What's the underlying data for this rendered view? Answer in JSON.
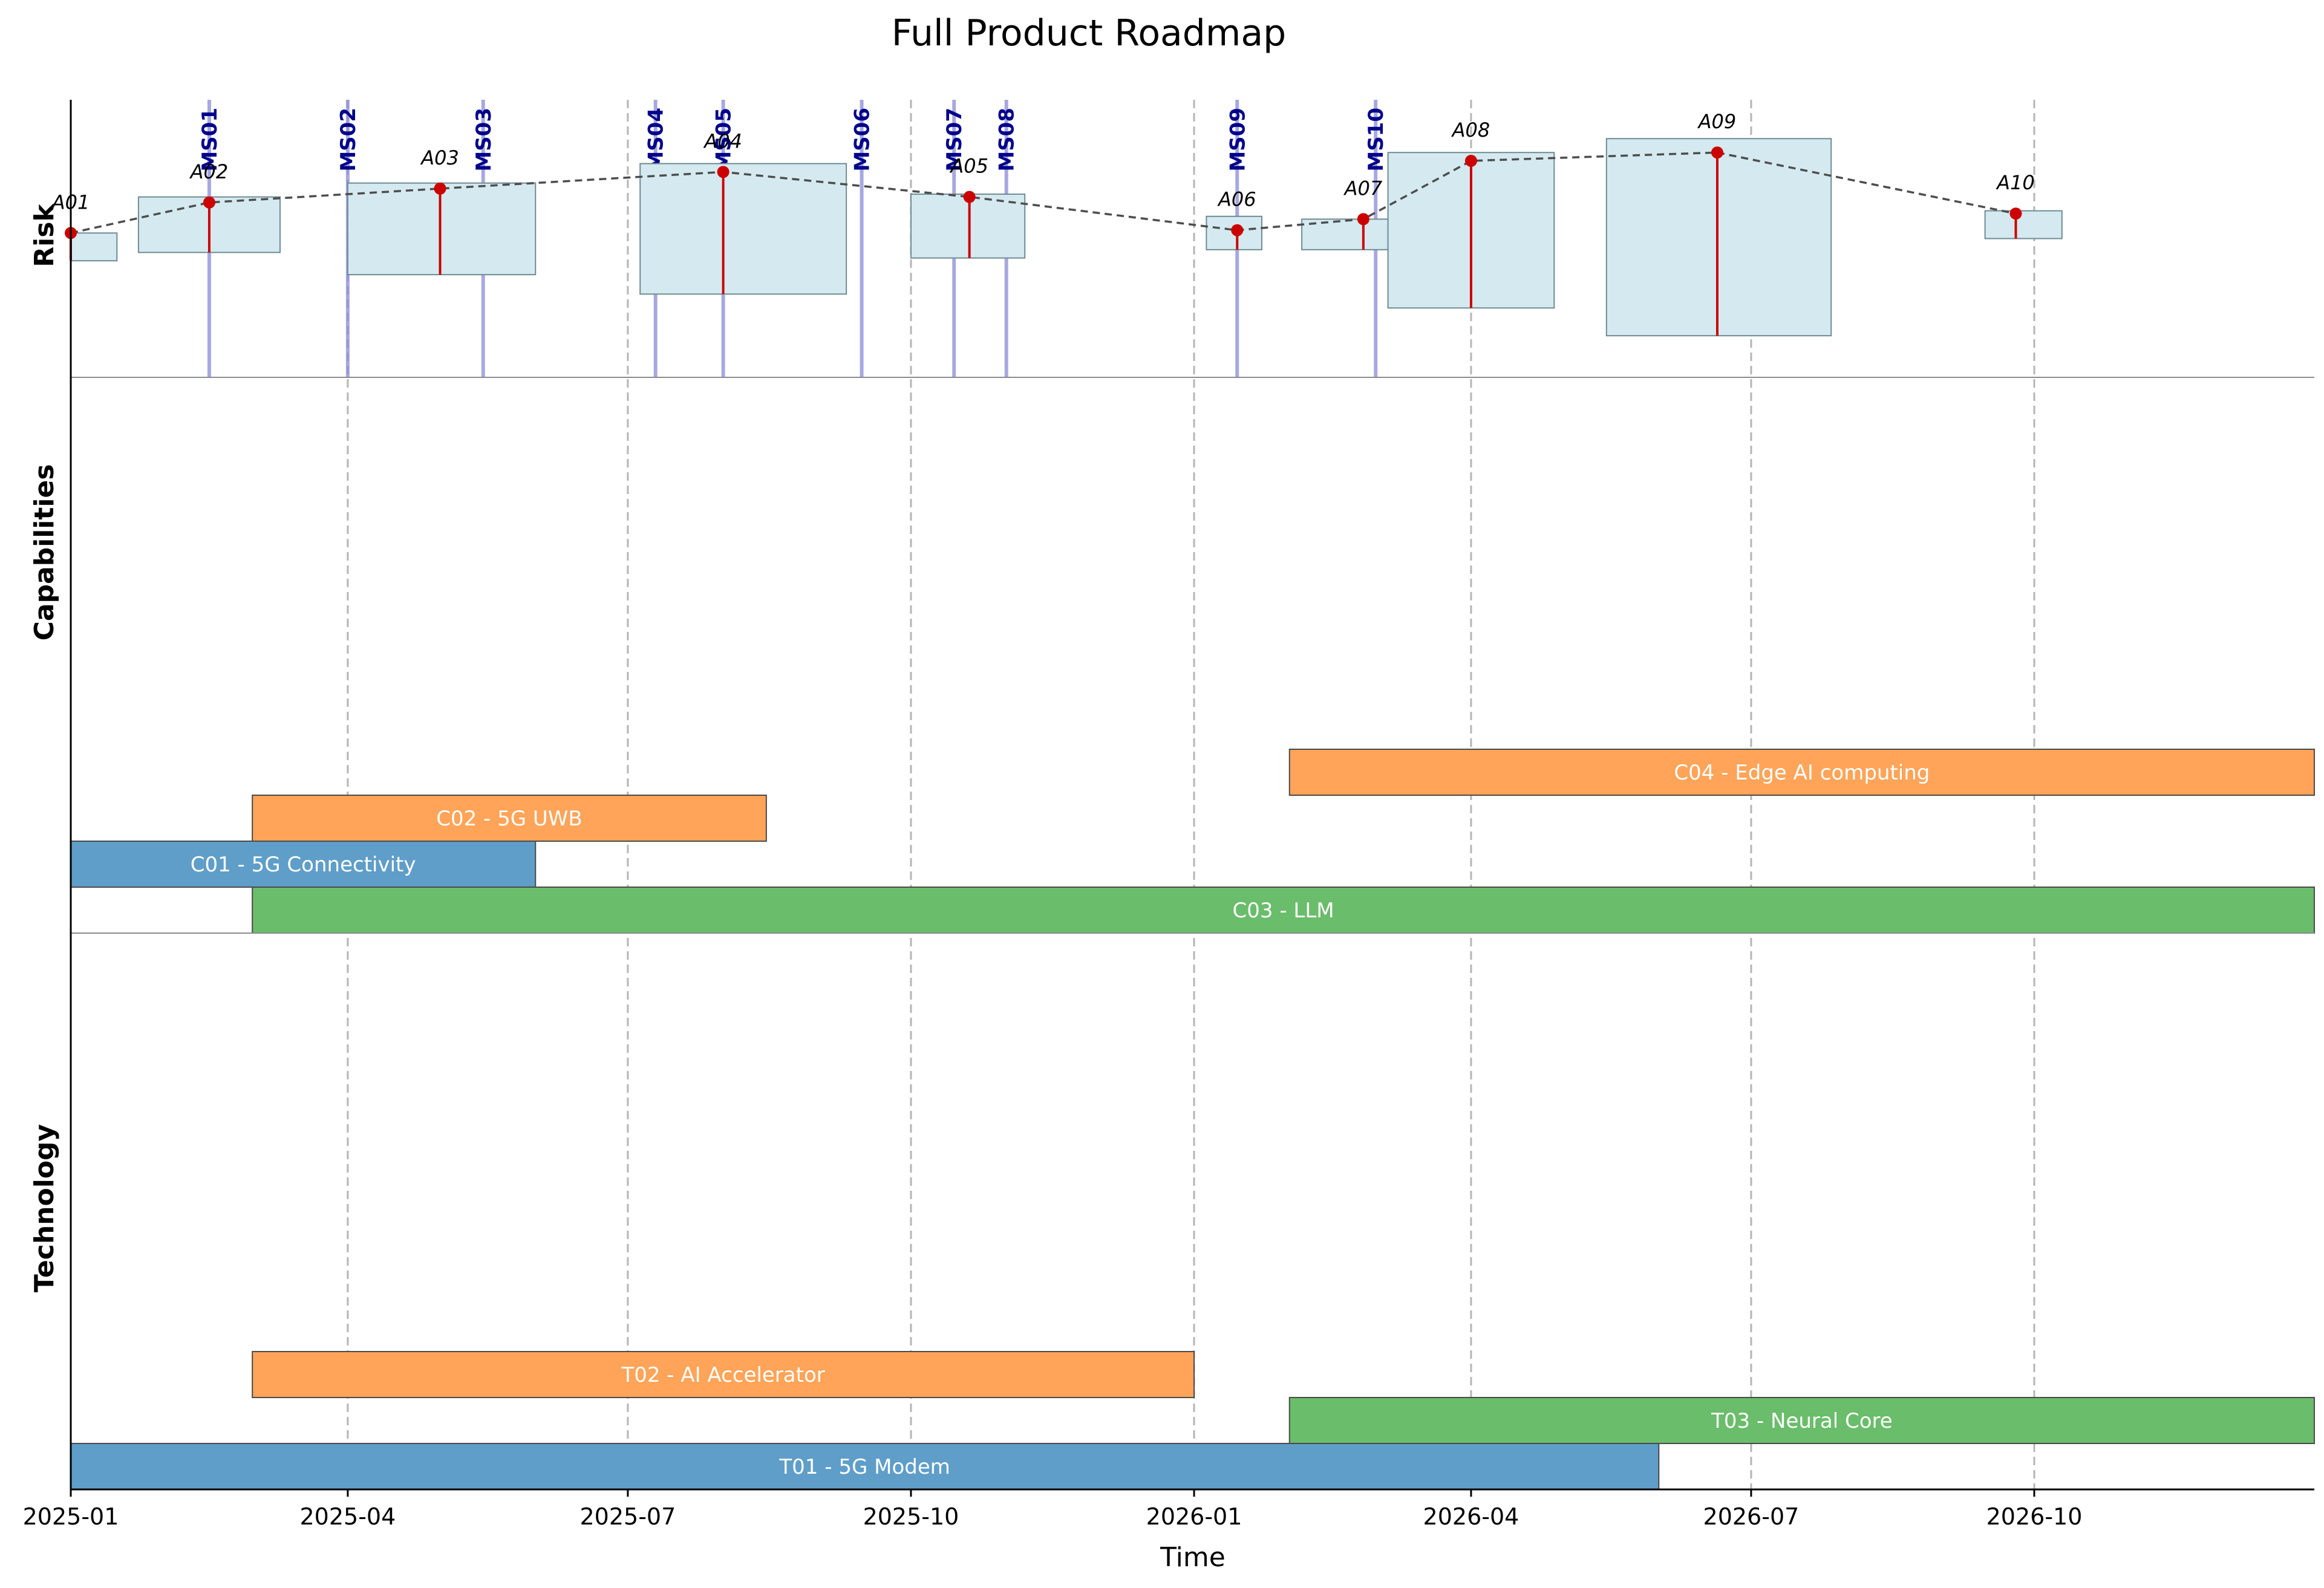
{
  "chart_data": {
    "type": "gantt",
    "title": "Full Product Roadmap",
    "xlabel": "Time",
    "x_range": [
      "2025-01-01",
      "2026-12-31"
    ],
    "x_ticks": [
      "2025-01",
      "2025-04",
      "2025-07",
      "2025-10",
      "2026-01",
      "2026-04",
      "2026-07",
      "2026-10"
    ],
    "grid": "vertical dashed at ticks",
    "lanes": [
      "Risk",
      "Capabilities",
      "Technology"
    ],
    "colors": {
      "blue": "#5f9ec9",
      "orange": "#ffa458",
      "green": "#6abd6a",
      "risk_box": "#d4eaf0",
      "risk_point": "#cc0000",
      "milestone_line": "#8c8cd6",
      "milestone_label": "#00008b"
    },
    "milestones": [
      {
        "label": "MS01",
        "date": "2025-02-15"
      },
      {
        "label": "MS02",
        "date": "2025-04-01"
      },
      {
        "label": "MS03",
        "date": "2025-05-15"
      },
      {
        "label": "MS04",
        "date": "2025-07-10"
      },
      {
        "label": "MS05",
        "date": "2025-08-01"
      },
      {
        "label": "MS06",
        "date": "2025-09-15"
      },
      {
        "label": "MS07",
        "date": "2025-10-15"
      },
      {
        "label": "MS08",
        "date": "2025-11-01"
      },
      {
        "label": "MS09",
        "date": "2026-01-15"
      },
      {
        "label": "MS10",
        "date": "2026-03-01"
      }
    ],
    "risk": [
      {
        "label": "A01",
        "date": "2025-01-01",
        "value": 0.52,
        "low": 0.42,
        "high": 0.52,
        "box_start": "2024-12-17",
        "box_end": "2025-01-16"
      },
      {
        "label": "A02",
        "date": "2025-02-15",
        "value": 0.63,
        "low": 0.45,
        "high": 0.65,
        "box_start": "2025-01-23",
        "box_end": "2025-03-10"
      },
      {
        "label": "A03",
        "date": "2025-05-01",
        "value": 0.68,
        "low": 0.37,
        "high": 0.7,
        "box_start": "2025-04-01",
        "box_end": "2025-06-01"
      },
      {
        "label": "A04",
        "date": "2025-08-01",
        "value": 0.74,
        "low": 0.3,
        "high": 0.77,
        "box_start": "2025-07-05",
        "box_end": "2025-09-10"
      },
      {
        "label": "A05",
        "date": "2025-10-20",
        "value": 0.65,
        "low": 0.43,
        "high": 0.66,
        "box_start": "2025-10-01",
        "box_end": "2025-11-07"
      },
      {
        "label": "A06",
        "date": "2026-01-15",
        "value": 0.53,
        "low": 0.46,
        "high": 0.58,
        "box_start": "2026-01-05",
        "box_end": "2026-01-23"
      },
      {
        "label": "A07",
        "date": "2026-02-25",
        "value": 0.57,
        "low": 0.46,
        "high": 0.57,
        "box_start": "2026-02-05",
        "box_end": "2026-03-07"
      },
      {
        "label": "A08",
        "date": "2026-04-01",
        "value": 0.78,
        "low": 0.25,
        "high": 0.81,
        "box_start": "2026-03-05",
        "box_end": "2026-04-28"
      },
      {
        "label": "A09",
        "date": "2026-06-20",
        "value": 0.81,
        "low": 0.15,
        "high": 0.86,
        "box_start": "2026-05-15",
        "box_end": "2026-07-27"
      },
      {
        "label": "A10",
        "date": "2026-09-25",
        "value": 0.59,
        "low": 0.5,
        "high": 0.6,
        "box_start": "2026-09-15",
        "box_end": "2026-10-10"
      }
    ],
    "capabilities": [
      {
        "label": "C02 - 5G UWB",
        "start": "2025-03-01",
        "end": "2025-08-15",
        "row": 2,
        "color": "orange"
      },
      {
        "label": "C04 - Edge AI computing",
        "start": "2026-02-01",
        "end": "2026-12-31",
        "row": 3,
        "color": "orange"
      },
      {
        "label": "C01 - 5G Connectivity",
        "start": "2025-01-01",
        "end": "2025-06-01",
        "row": 1,
        "color": "blue"
      },
      {
        "label": "C03 - LLM",
        "start": "2025-03-01",
        "end": "2026-12-31",
        "row": 0,
        "color": "green"
      }
    ],
    "technology": [
      {
        "label": "T02 - AI Accelerator",
        "start": "2025-03-01",
        "end": "2026-01-01",
        "row": 2,
        "color": "orange"
      },
      {
        "label": "T03 - Neural Core",
        "start": "2026-02-01",
        "end": "2026-12-31",
        "row": 1,
        "color": "green"
      },
      {
        "label": "T01 - 5G Modem",
        "start": "2025-01-01",
        "end": "2026-06-01",
        "row": 0,
        "color": "blue"
      }
    ]
  }
}
